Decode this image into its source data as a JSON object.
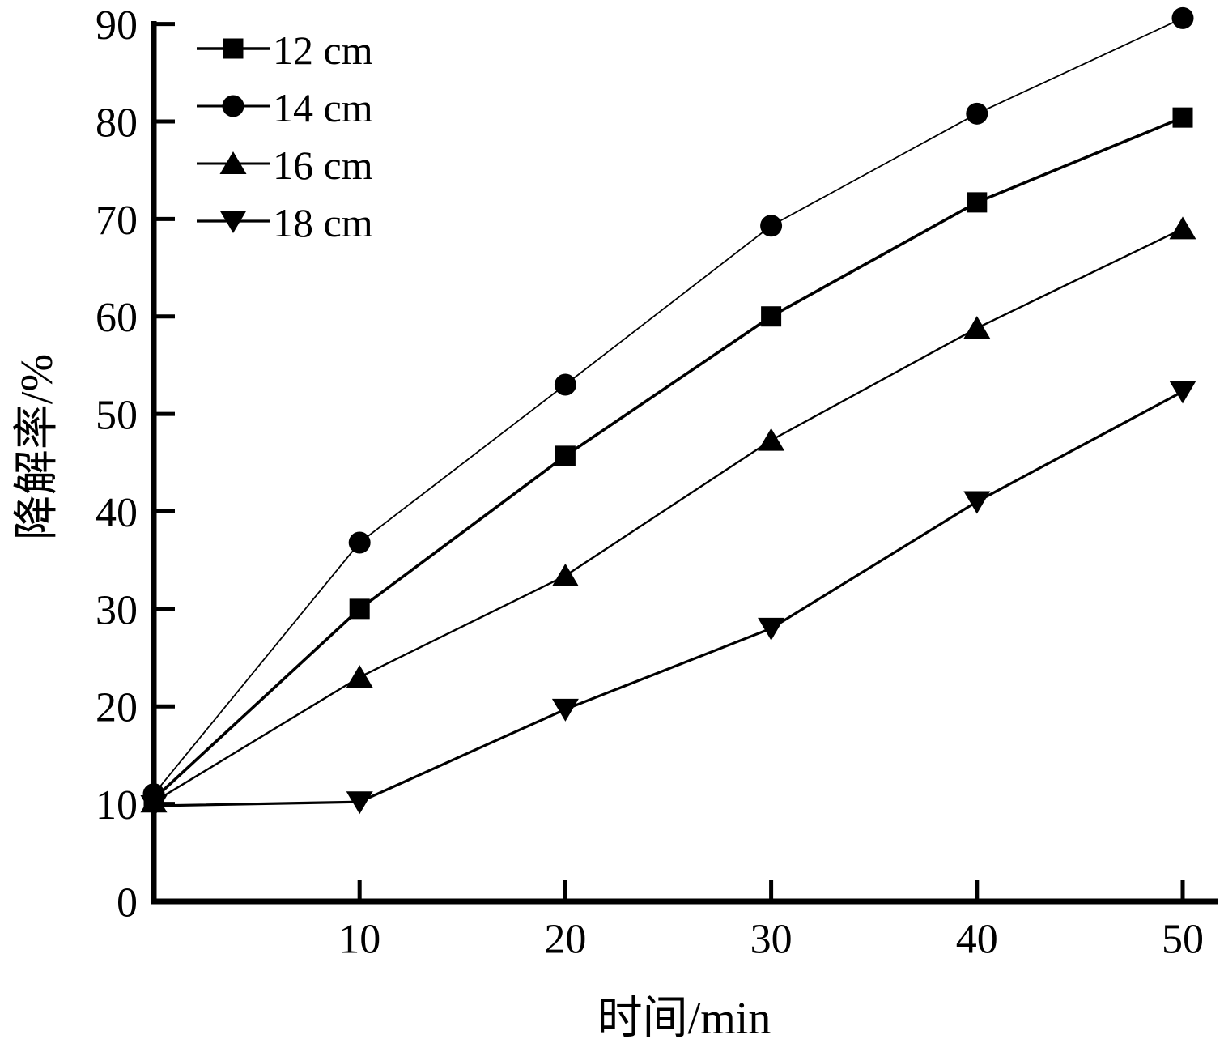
{
  "chart_data": {
    "type": "line",
    "title": "",
    "xlabel": "时间/min",
    "ylabel": "降解率/%",
    "x": [
      0,
      10,
      20,
      30,
      40,
      50
    ],
    "xlim": [
      0,
      52
    ],
    "ylim": [
      0,
      90
    ],
    "x_ticks": [
      10,
      20,
      30,
      40,
      50
    ],
    "y_ticks": [
      0,
      10,
      20,
      30,
      40,
      50,
      60,
      70,
      80,
      90
    ],
    "grid": false,
    "legend_position": "top-left",
    "series": [
      {
        "name": "12 cm",
        "marker": "square",
        "line_width": 3.6,
        "values": [
          10.5,
          30.0,
          45.7,
          60.0,
          71.7,
          80.4
        ]
      },
      {
        "name": "14 cm",
        "marker": "circle",
        "line_width": 1.8,
        "values": [
          11.0,
          36.8,
          53.0,
          69.3,
          80.8,
          90.6
        ]
      },
      {
        "name": "16 cm",
        "marker": "triangle-up",
        "line_width": 2.4,
        "values": [
          10.2,
          23.0,
          33.4,
          47.3,
          58.8,
          69.0
        ]
      },
      {
        "name": "18 cm",
        "marker": "triangle-down",
        "line_width": 3.2,
        "values": [
          9.8,
          10.2,
          19.7,
          28.0,
          41.0,
          52.3
        ]
      }
    ],
    "colors": {
      "foreground": "#000000",
      "background": "#ffffff"
    }
  }
}
